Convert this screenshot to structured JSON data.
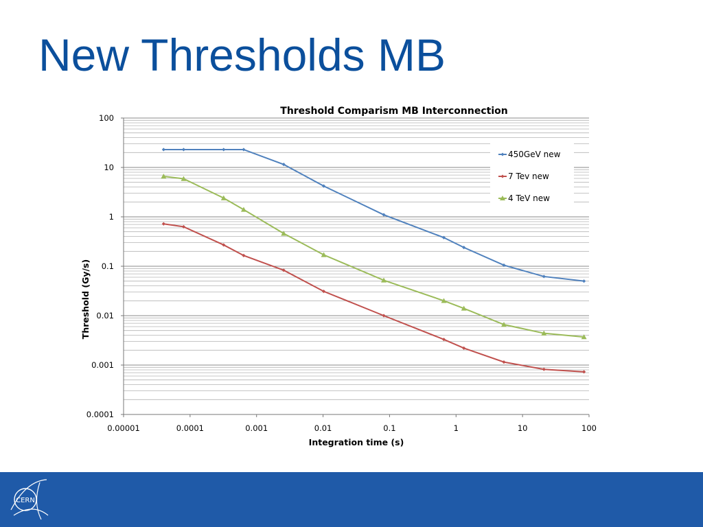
{
  "slide": {
    "title": "New Thresholds MB",
    "logo_text": "CERN",
    "footer_color": "#1f5aa8",
    "title_color": "#0b4f9c"
  },
  "chart_data": {
    "type": "line",
    "title": "Threshold Comparism MB Interconnection",
    "xlabel": "Integration time (s)",
    "ylabel": "Threshold (Gy/s)",
    "x_scale": "log",
    "y_scale": "log",
    "xlim": [
      1e-05,
      100
    ],
    "ylim": [
      0.0001,
      100
    ],
    "x_ticks": [
      "0.00001",
      "0.0001",
      "0.001",
      "0.01",
      "0.1",
      "1",
      "10",
      "100"
    ],
    "y_ticks": [
      "100",
      "10",
      "1",
      "0.1",
      "0.01",
      "0.001",
      "0.0001"
    ],
    "grid": true,
    "legend_position": "top-right",
    "series": [
      {
        "name": "450GeV new",
        "color": "#4f81bd",
        "marker": "diamond",
        "x": [
          4e-05,
          8e-05,
          0.00032,
          0.00064,
          0.00256,
          0.01024,
          0.08192,
          0.65536,
          1.31072,
          5.24288,
          20.97152,
          83.88608
        ],
        "y": [
          23,
          23,
          23,
          23,
          11.5,
          4.2,
          1.1,
          0.38,
          0.24,
          0.105,
          0.062,
          0.05
        ]
      },
      {
        "name": "7 Tev new",
        "color": "#c0504d",
        "marker": "diamond",
        "x": [
          4e-05,
          8e-05,
          0.00032,
          0.00064,
          0.00256,
          0.01024,
          0.08192,
          0.65536,
          1.31072,
          5.24288,
          20.97152,
          83.88608
        ],
        "y": [
          0.72,
          0.63,
          0.27,
          0.165,
          0.083,
          0.031,
          0.01,
          0.0033,
          0.0022,
          0.00115,
          0.00082,
          0.00073
        ]
      },
      {
        "name": "4 TeV new",
        "color": "#9bbb59",
        "marker": "triangle",
        "x": [
          4e-05,
          8e-05,
          0.00032,
          0.00064,
          0.00256,
          0.01024,
          0.08192,
          0.65536,
          1.31072,
          5.24288,
          20.97152,
          83.88608
        ],
        "y": [
          6.6,
          5.9,
          2.4,
          1.4,
          0.46,
          0.17,
          0.052,
          0.02,
          0.014,
          0.0066,
          0.0044,
          0.0037
        ]
      }
    ]
  }
}
